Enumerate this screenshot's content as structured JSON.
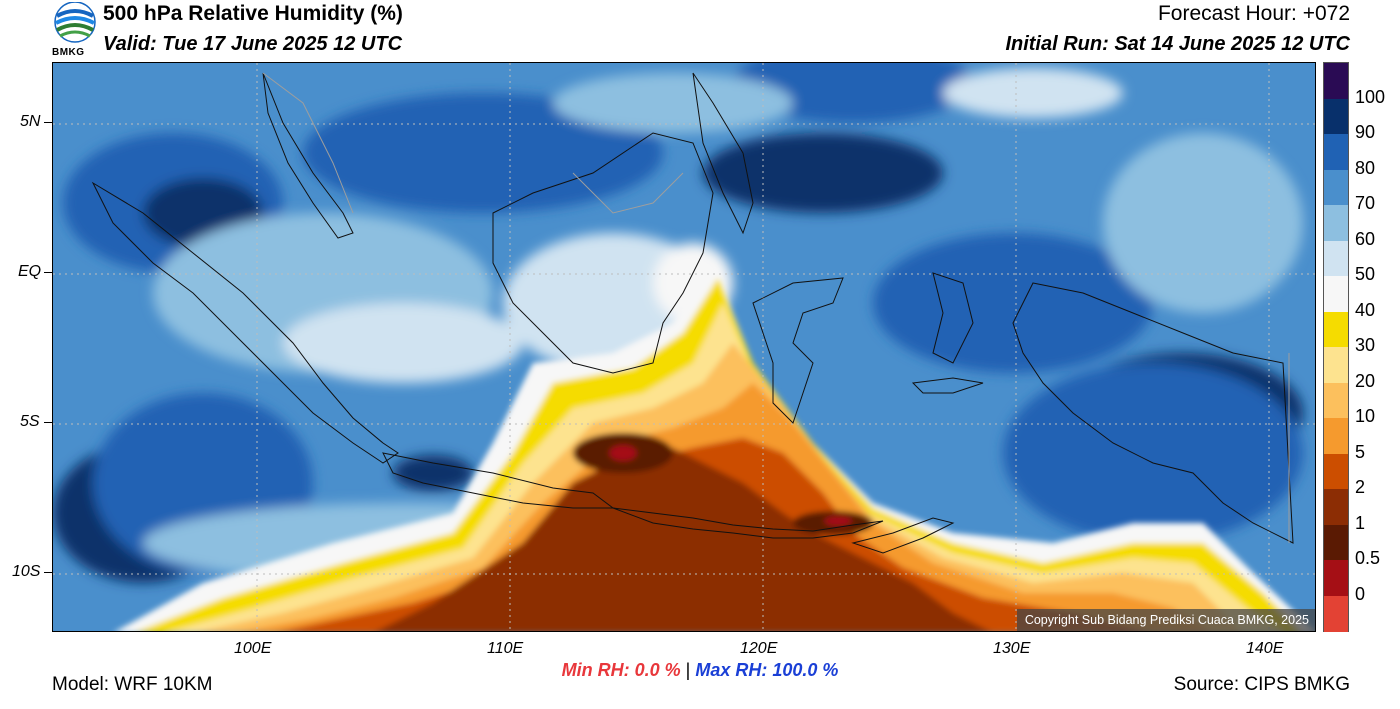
{
  "header": {
    "title": "500 hPa Relative Humidity (%)",
    "valid": "Valid: Tue 17 June 2025 12 UTC",
    "forecast_hour": "Forecast Hour: +072",
    "initial_run": "Initial Run: Sat 14 June 2025 12 UTC",
    "logo_text": "BMKG"
  },
  "map": {
    "y_axis_labels": [
      "5N",
      "EQ",
      "5S",
      "10S"
    ],
    "x_axis_labels": [
      "100E",
      "110E",
      "120E",
      "130E",
      "140E"
    ],
    "copyright": "Copyright Sub Bidang Prediksi Cuaca BMKG, 2025"
  },
  "colorbar": {
    "labels": [
      "100",
      "90",
      "80",
      "70",
      "60",
      "50",
      "40",
      "30",
      "20",
      "10",
      "5",
      "2",
      "1",
      "0.5",
      "0"
    ],
    "colors": [
      "#2a0b54",
      "#08306b",
      "#2062b4",
      "#4a8fcc",
      "#8dbfe0",
      "#d0e3f1",
      "#f7f7f7",
      "#f5dc00",
      "#fde38f",
      "#fcc05d",
      "#f59a2e",
      "#cc4e00",
      "#8c2d04",
      "#5a1a03",
      "#a50f15",
      "#e34234"
    ]
  },
  "footer": {
    "min_rh": "Min RH:   0.0 %",
    "separator": "|",
    "max_rh": "Max RH: 100.0 %",
    "model": "Model: WRF 10KM",
    "source": "Source: CIPS BMKG"
  }
}
